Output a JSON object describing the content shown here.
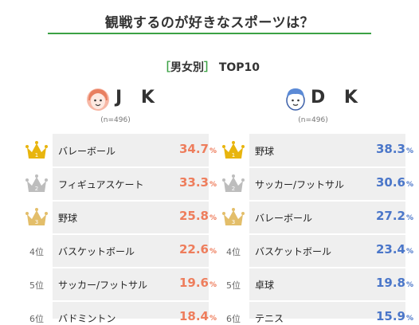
{
  "header": {
    "title": "観戦するのが好きなスポーツは？",
    "subtitle_open": "［",
    "subtitle_main": "男女別",
    "subtitle_close": "］",
    "subtitle_suffix": "TOP10"
  },
  "colors": {
    "green": "#3ba144",
    "jk": "#ee7d5c",
    "dk": "#4a76c9",
    "gold": "#e8b50e",
    "silver": "#bdbdbd",
    "bronze": "#e3be6a"
  },
  "chart_data": [
    {
      "type": "table",
      "group": "J K",
      "sample": "(n=496)",
      "unit": "%",
      "ranks": [
        "1",
        "2",
        "3",
        "4位",
        "5位",
        "6位"
      ],
      "categories": [
        "バレーボール",
        "フィギュアスケート",
        "野球",
        "バスケットボール",
        "サッカー/フットサル",
        "バドミントン"
      ],
      "values": [
        "34.7",
        "33.3",
        "25.8",
        "22.6",
        "19.6",
        "18.4"
      ]
    },
    {
      "type": "table",
      "group": "D K",
      "sample": "(n=496)",
      "unit": "%",
      "ranks": [
        "1",
        "2",
        "3",
        "4位",
        "5位",
        "6位"
      ],
      "categories": [
        "野球",
        "サッカー/フットサル",
        "バレーボール",
        "バスケットボール",
        "卓球",
        "テニス"
      ],
      "values": [
        "38.3",
        "30.6",
        "27.2",
        "23.4",
        "19.8",
        "15.9"
      ]
    }
  ]
}
